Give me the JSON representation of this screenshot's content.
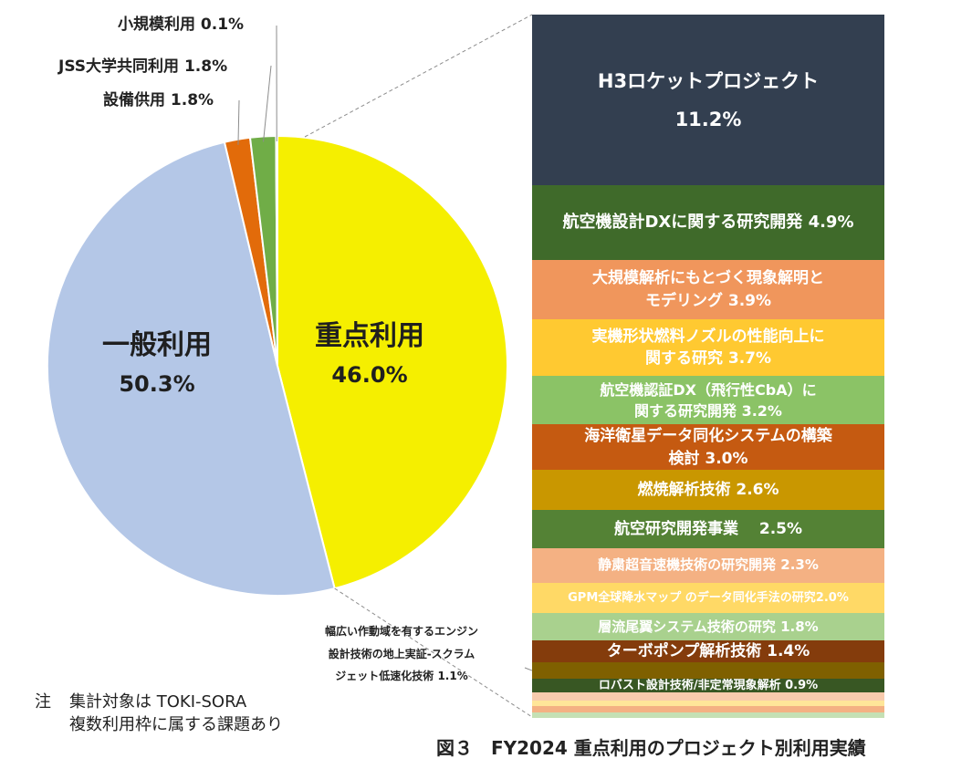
{
  "chart_data": [
    {
      "type": "pie",
      "title": "",
      "slices": [
        {
          "label": "重点利用",
          "value": 46.0,
          "value_label": "46.0%",
          "color": "#F5EF00"
        },
        {
          "label": "一般利用",
          "value": 50.3,
          "value_label": "50.3%",
          "color": "#B4C7E7"
        },
        {
          "label": "設備供用",
          "value": 1.8,
          "value_label": "1.8%",
          "color": "#E26B0A"
        },
        {
          "label": "JSS大学共同利用",
          "value": 1.8,
          "value_label": "1.8%",
          "color": "#70AD47"
        },
        {
          "label": "小規模利用",
          "value": 0.1,
          "value_label": "0.1%",
          "color": "#4472C4"
        }
      ]
    },
    {
      "type": "bar",
      "subtype": "stacked-100",
      "title": "",
      "categories": [
        "重点利用"
      ],
      "series": [
        {
          "name": "H3ロケットプロジェクト",
          "value": 11.2,
          "value_label": "11.2%",
          "color": "#333F50"
        },
        {
          "name": "航空機設計DXに関する研究開発",
          "value": 4.9,
          "value_label": "4.9%",
          "color": "#3F6A2A"
        },
        {
          "name": "大規模解析にもとづく現象解明とモデリング",
          "value": 3.9,
          "value_label": "3.9%",
          "color": "#F0965C"
        },
        {
          "name": "実機形状燃料ノズルの性能向上に関する研究",
          "value": 3.7,
          "value_label": "3.7%",
          "color": "#FFC931"
        },
        {
          "name": "航空機認証DX（飛行性CbA）に関する研究開発",
          "value": 3.2,
          "value_label": "3.2%",
          "color": "#8BC366"
        },
        {
          "name": "海洋衛星データ同化システムの構築検討",
          "value": 3.0,
          "value_label": "3.0%",
          "color": "#C55A11"
        },
        {
          "name": "燃焼解析技術",
          "value": 2.6,
          "value_label": "2.6%",
          "color": "#C99700"
        },
        {
          "name": "航空研究開発事業",
          "value": 2.5,
          "value_label": "2.5%",
          "color": "#548235"
        },
        {
          "name": "静粛超音速機技術の研究開発",
          "value": 2.3,
          "value_label": "2.3%",
          "color": "#F4B183"
        },
        {
          "name": "GPM全球降水マップのデータ同化手法の研究",
          "value": 2.0,
          "value_label": "2.0%",
          "color": "#FFD966"
        },
        {
          "name": "層流尾翼システム技術の研究",
          "value": 1.8,
          "value_label": "1.8%",
          "color": "#A9D18E"
        },
        {
          "name": "ターボポンプ解析技術",
          "value": 1.4,
          "value_label": "1.4%",
          "color": "#843C0C"
        },
        {
          "name": "幅広い作動域を有するエンジン設計技術の地上実証-スクラムジェット低速化技術",
          "value": 1.1,
          "value_label": "1.1%",
          "color": "#7F6000"
        },
        {
          "name": "ロバスト設計技術/非定常現象解析",
          "value": 0.9,
          "value_label": "0.9%",
          "color": "#385723"
        },
        {
          "name": "",
          "value": 0.5,
          "value_label": "",
          "color": "#F8CBAD"
        },
        {
          "name": "",
          "value": 0.4,
          "value_label": "",
          "color": "#FFE699"
        },
        {
          "name": "",
          "value": 0.4,
          "value_label": "",
          "color": "#F4B183"
        },
        {
          "name": "",
          "value": 0.3,
          "value_label": "",
          "color": "#C5E0B4"
        }
      ]
    }
  ],
  "labels": {
    "pie_major": [
      {
        "name": "重点利用",
        "pct": "46.0%"
      },
      {
        "name": "一般利用",
        "pct": "50.3%"
      }
    ],
    "pie_minor": [
      {
        "text": "小規模利用 0.1%"
      },
      {
        "text": "JSS大学共同利用 1.8%"
      },
      {
        "text": "設備供用 1.8%"
      }
    ],
    "bar_segments": [
      {
        "lines": [
          "H3ロケットプロジェクト",
          "11.2%"
        ]
      },
      {
        "lines": [
          "航空機設計DXに関する研究開発 4.9%"
        ]
      },
      {
        "lines": [
          "大規模解析にもとづく現象解明と",
          "モデリング 3.9%"
        ]
      },
      {
        "lines": [
          "実機形状燃料ノズルの性能向上に",
          "関する研究 3.7%"
        ]
      },
      {
        "lines": [
          "航空機認証DX（飛行性CbA）に",
          "関する研究開発 3.2%"
        ]
      },
      {
        "lines": [
          "海洋衛星データ同化システムの構築",
          "検討 3.0%"
        ]
      },
      {
        "lines": [
          "燃焼解析技術 2.6%"
        ]
      },
      {
        "lines": [
          "航空研究開発事業　 2.5%"
        ]
      },
      {
        "lines": [
          "静粛超音速機技術の研究開発 2.3%"
        ]
      },
      {
        "lines": [
          "GPM全球降水マップ のデータ同化手法の研究2.0%"
        ]
      },
      {
        "lines": [
          "層流尾翼システム技術の研究 1.8%"
        ]
      },
      {
        "lines": [
          "ターボポンプ解析技術 1.4%"
        ]
      },
      {
        "lines": []
      },
      {
        "lines": [
          "ロバスト設計技術/非定常現象解析 0.9%"
        ]
      },
      {
        "lines": []
      },
      {
        "lines": []
      },
      {
        "lines": []
      },
      {
        "lines": []
      }
    ],
    "callout_lines": [
      "幅広い作動域を有するエンジン",
      "設計技術の地上実証-スクラム",
      "ジェット低速化技術 1.1%"
    ]
  },
  "note": {
    "mark": "注",
    "line1": "集計対象は TOKI-SORA",
    "line2": "複数利用枠に属する課題あり"
  },
  "caption": "図３　FY2024 重点利用のプロジェクト別利用実績"
}
